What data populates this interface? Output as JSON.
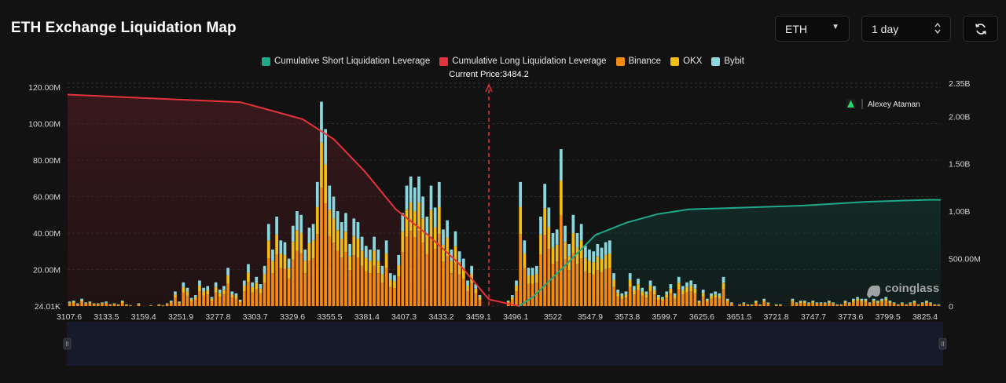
{
  "header": {
    "title": "ETH Exchange Liquidation Map",
    "symbol_select": "ETH",
    "period_select": "1 day"
  },
  "watermark_user": "Alexey Ataman",
  "watermark_brand": "coinglass",
  "colors": {
    "short_cum": "#1fa88a",
    "long_cum": "#e5333b",
    "binance": "#f58a13",
    "okx": "#f3bd16",
    "bybit": "#8ad7df",
    "price_line": "#e5333b"
  },
  "chart_data": {
    "type": "bar",
    "legend": [
      "Cumulative Short Liquidation Leverage",
      "Cumulative Long Liquidation Leverage",
      "Binance",
      "OKX",
      "Bybit"
    ],
    "current_price_label": "Current Price:3484.2",
    "current_price": 3484.2,
    "x_tick_labels": [
      "3107.6",
      "3133.5",
      "3159.4",
      "3251.9",
      "3277.8",
      "3303.7",
      "3329.6",
      "3355.5",
      "3381.4",
      "3407.3",
      "3433.2",
      "3459.1",
      "3496.1",
      "3522",
      "3547.9",
      "3573.8",
      "3599.7",
      "3625.6",
      "3651.5",
      "3721.8",
      "3747.7",
      "3773.6",
      "3799.5",
      "3825.4"
    ],
    "y_left_ticks": [
      "24.01K",
      "20.00M",
      "40.00M",
      "60.00M",
      "80.00M",
      "100.00M",
      "120.00M"
    ],
    "y_left_values": [
      0,
      20,
      40,
      60,
      80,
      100,
      120
    ],
    "y_left_unit": "M",
    "y_right_ticks": [
      "0",
      "500.00M",
      "1.00B",
      "1.50B",
      "2.00B",
      "2.35B"
    ],
    "y_right_values": [
      0,
      0.5,
      1.0,
      1.5,
      2.0,
      2.35
    ],
    "y_right_unit": "B",
    "bars_total_m": [
      2.5,
      3,
      1.5,
      4,
      2,
      2.5,
      1.5,
      1.5,
      2,
      2.5,
      1,
      1.5,
      1,
      3,
      1,
      0.5,
      0,
      1.5,
      0,
      0,
      0.5,
      0,
      1,
      0.5,
      1.5,
      3,
      8,
      2.5,
      13,
      10,
      4.5,
      6,
      14,
      10,
      11,
      5,
      13,
      9,
      11,
      21,
      8,
      7,
      3.5,
      14,
      23,
      13,
      16,
      12,
      22,
      45,
      31,
      49,
      36,
      35,
      26,
      44,
      52,
      50,
      31,
      43,
      45,
      68,
      112,
      97,
      66,
      60,
      52,
      46,
      51,
      34,
      48,
      46,
      38,
      33,
      31,
      38,
      31,
      22,
      36,
      18,
      17,
      28,
      51,
      66,
      71,
      65,
      71,
      60,
      49,
      66,
      54,
      68,
      42,
      47,
      31,
      41,
      30,
      26,
      14,
      22,
      12,
      6,
      0,
      0,
      0,
      0,
      0,
      0,
      3,
      6,
      14,
      68,
      36,
      21,
      21,
      22,
      49,
      67,
      54,
      40,
      42,
      86,
      44,
      34,
      50,
      40,
      45,
      33,
      31,
      30,
      34,
      32,
      35,
      36,
      18,
      9,
      7,
      8,
      18,
      11,
      15,
      10,
      8,
      14,
      11,
      6,
      5,
      8,
      12,
      7,
      16,
      11,
      13,
      14,
      12,
      3,
      9,
      4,
      7,
      8,
      7,
      16,
      4,
      2,
      0,
      1,
      2,
      1,
      1,
      3,
      1,
      4,
      2,
      0,
      1,
      1,
      0,
      0,
      4,
      2,
      3,
      3,
      2,
      3,
      2,
      2,
      2,
      3,
      2,
      1,
      1,
      3,
      2,
      4,
      5,
      4,
      4,
      2,
      4,
      3,
      4,
      5,
      3,
      2,
      1,
      2,
      1,
      2,
      3,
      1,
      2,
      3,
      2,
      1,
      1
    ],
    "cum_long_b": [
      {
        "x": 3107.6,
        "y": 2.23
      },
      {
        "x": 3159.4,
        "y": 2.2
      },
      {
        "x": 3251.9,
        "y": 2.15
      },
      {
        "x": 3277.8,
        "y": 2.06
      },
      {
        "x": 3303.7,
        "y": 1.97
      },
      {
        "x": 3329.6,
        "y": 1.76
      },
      {
        "x": 3355.5,
        "y": 1.42
      },
      {
        "x": 3381.4,
        "y": 1.02
      },
      {
        "x": 3407.3,
        "y": 0.76
      },
      {
        "x": 3433.2,
        "y": 0.46
      },
      {
        "x": 3459.1,
        "y": 0.07
      },
      {
        "x": 3484.2,
        "y": 0
      }
    ],
    "cum_short_b": [
      {
        "x": 3484.2,
        "y": 0
      },
      {
        "x": 3496.1,
        "y": 0.1
      },
      {
        "x": 3522,
        "y": 0.42
      },
      {
        "x": 3547.9,
        "y": 0.75
      },
      {
        "x": 3573.8,
        "y": 0.88
      },
      {
        "x": 3599.7,
        "y": 0.97
      },
      {
        "x": 3625.6,
        "y": 1.02
      },
      {
        "x": 3651.5,
        "y": 1.03
      },
      {
        "x": 3721.8,
        "y": 1.06
      },
      {
        "x": 3773.6,
        "y": 1.1
      },
      {
        "x": 3825.4,
        "y": 1.12
      }
    ]
  }
}
